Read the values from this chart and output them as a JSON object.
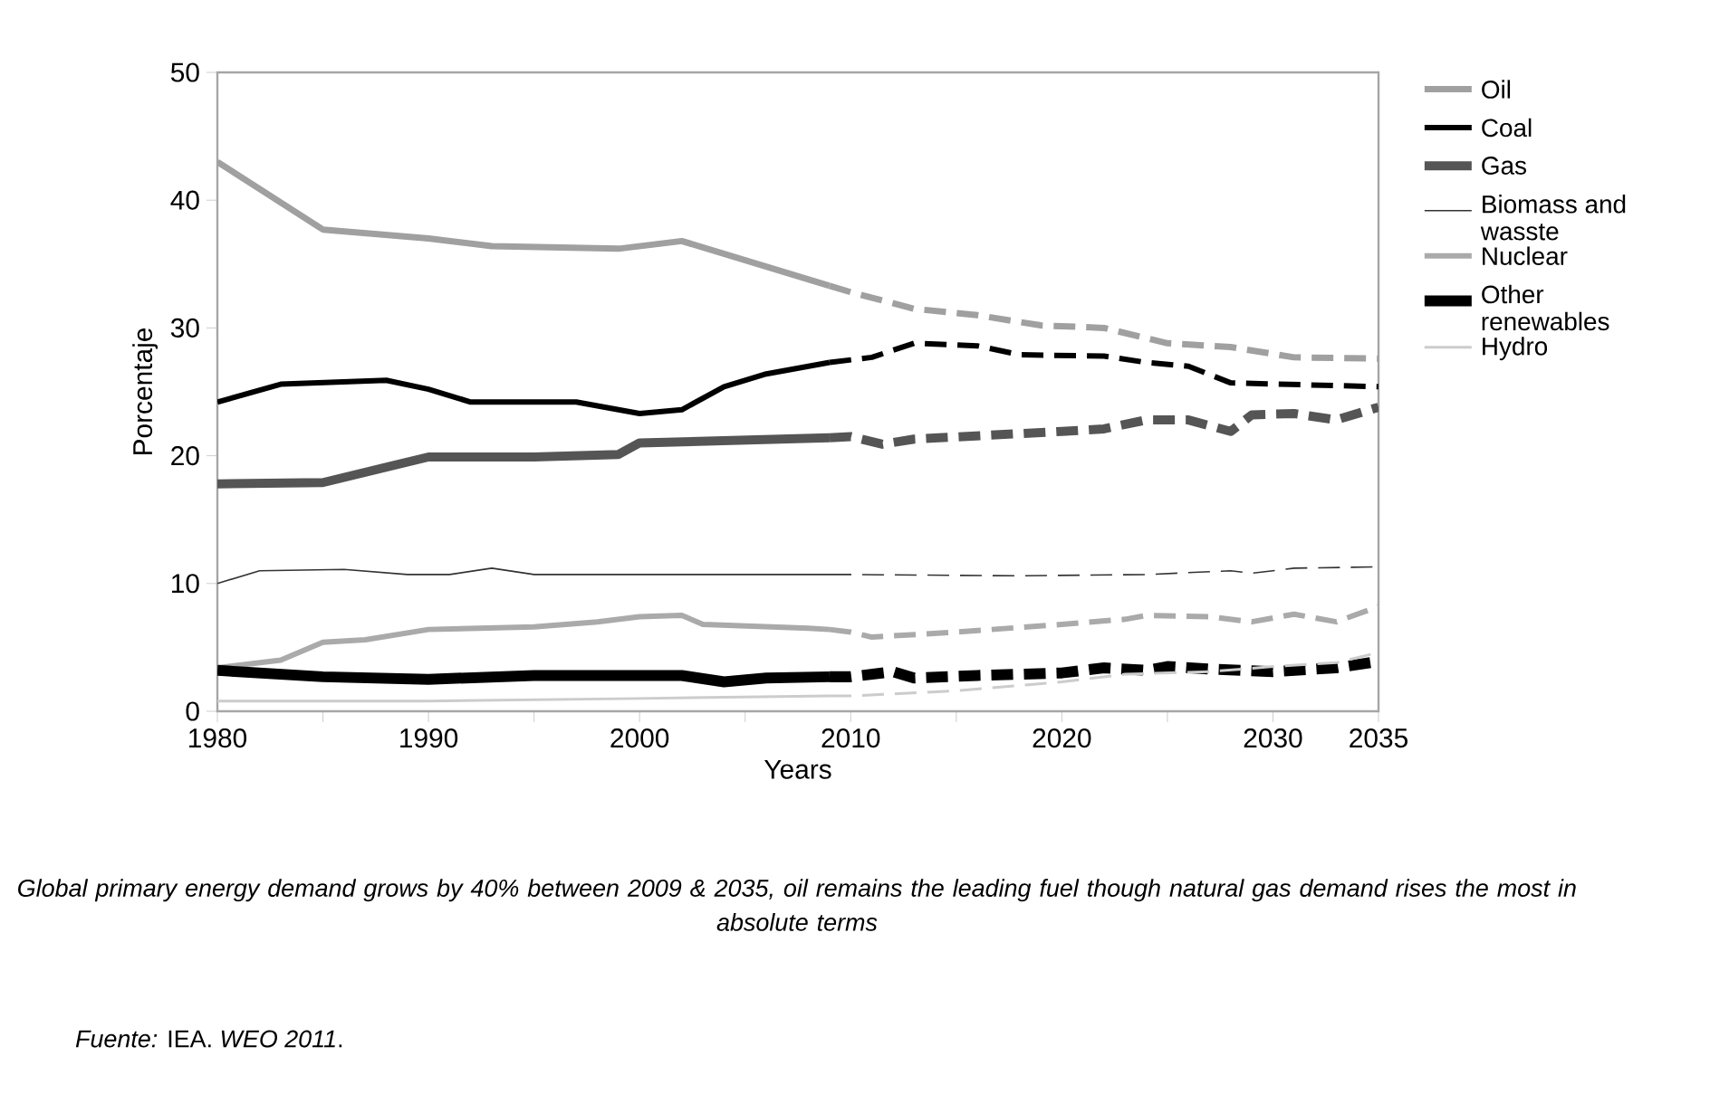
{
  "chart_data": {
    "type": "line",
    "xlabel": "Years",
    "ylabel": "Porcentaje",
    "annotations": [
      "*Global primary energy demand grows by 40% between 2009 & 2035, oil remains the leading fuel though natural gas demand rises the most in absolute terms*",
      "*Fuente:* IEA. *WEO 2011*."
    ],
    "xlim": [
      1980,
      2035
    ],
    "ylim": [
      0,
      50
    ],
    "xticks": [
      1980,
      {
        "value": 1985,
        "label": null
      },
      1990,
      {
        "value": 1995,
        "label": null
      },
      2000,
      {
        "value": 2005,
        "label": null
      },
      2010,
      {
        "value": 2015,
        "label": null
      },
      2020,
      {
        "value": 2025,
        "label": null
      },
      2030,
      2035
    ],
    "yticks": [
      0,
      10,
      20,
      30,
      40,
      50
    ],
    "grid": false,
    "legend": "right",
    "marker": "none",
    "series": [
      {
        "name": "Oil",
        "color": "#a0a0a0",
        "line_style": "solid",
        "x": [
          1980,
          1985,
          1990,
          1993,
          1999,
          2002,
          2009
        ],
        "values": [
          43,
          37.7,
          37,
          36.4,
          36.2,
          36.8,
          33.3
        ]
      },
      {
        "name": "Coal",
        "color": "#000000",
        "line_style": "solid",
        "x": [
          1980,
          1983,
          1988,
          1990,
          1992,
          1997,
          2000,
          2002,
          2004,
          2006,
          2009
        ],
        "values": [
          24.2,
          25.6,
          25.9,
          25.2,
          24.2,
          24.2,
          23.3,
          23.6,
          25.4,
          26.4,
          27.3
        ]
      },
      {
        "name": "Gas",
        "color": "#555555",
        "line_style": "solid",
        "x": [
          1980,
          1985,
          1990,
          1995,
          1999,
          2000,
          2009
        ],
        "values": [
          17.8,
          17.9,
          19.9,
          19.9,
          20.1,
          21.0,
          21.4
        ]
      },
      {
        "name": "Biomass and wasste",
        "color": "#333333",
        "line_style": "solid",
        "x": [
          1980,
          1982,
          1986,
          1989,
          1991,
          1993,
          1995,
          2009
        ],
        "values": [
          10,
          11,
          11.1,
          10.7,
          10.7,
          11.2,
          10.7,
          10.7
        ]
      },
      {
        "name": "Nuclear",
        "color": "#aaaaaa",
        "line_style": "solid",
        "x": [
          1980,
          1983,
          1985,
          1987,
          1990,
          1995,
          1998,
          2000,
          2002,
          2003,
          2008,
          2009
        ],
        "values": [
          3.4,
          4.0,
          5.4,
          5.6,
          6.4,
          6.6,
          7.0,
          7.4,
          7.5,
          6.8,
          6.5,
          6.4
        ]
      },
      {
        "name": "Other renewables",
        "color": "#000000",
        "line_style": "solid",
        "x": [
          1980,
          1985,
          1990,
          1995,
          2002,
          2004,
          2006,
          2009
        ],
        "values": [
          3.2,
          2.7,
          2.5,
          2.8,
          2.8,
          2.3,
          2.6,
          2.7
        ]
      },
      {
        "name": "Hydro",
        "color": "#cccccc",
        "line_style": "solid",
        "x": [
          1980,
          1990,
          2000,
          2009
        ],
        "values": [
          0.8,
          0.8,
          1.0,
          1.2
        ]
      },
      {
        "color": "#a0a0a0",
        "line_style": "dashed",
        "x": [
          2009,
          2010,
          2013,
          2016,
          2019,
          2022,
          2025,
          2028,
          2031,
          2035
        ],
        "values": [
          33.3,
          32.8,
          31.5,
          31,
          30.2,
          30,
          28.8,
          28.5,
          27.7,
          27.6
        ]
      },
      {
        "color": "#000000",
        "line_style": "dashed",
        "x": [
          2009,
          2011,
          2013,
          2016,
          2018,
          2022,
          2024,
          2026,
          2028,
          2035
        ],
        "values": [
          27.3,
          27.7,
          28.8,
          28.6,
          27.9,
          27.8,
          27.3,
          27.0,
          25.7,
          25.4
        ]
      },
      {
        "color": "#555555",
        "line_style": "dashed",
        "x": [
          2009,
          2010,
          2011.5,
          2013,
          2020,
          2022,
          2024,
          2026,
          2028,
          2029,
          2031,
          2033,
          2035
        ],
        "values": [
          21.4,
          21.5,
          20.9,
          21.3,
          21.9,
          22.1,
          22.8,
          22.8,
          21.9,
          23.2,
          23.3,
          22.8,
          23.8
        ]
      },
      {
        "color": "#333333",
        "line_style": "dashed",
        "x": [
          2009,
          2010,
          2018,
          2024,
          2028,
          2029,
          2031,
          2035
        ],
        "values": [
          10.7,
          10.7,
          10.6,
          10.7,
          11.0,
          10.8,
          11.2,
          11.3
        ]
      },
      {
        "color": "#aaaaaa",
        "line_style": "dashed",
        "x": [
          2009,
          2010,
          2011,
          2015,
          2020,
          2023,
          2024,
          2027,
          2029,
          2031,
          2033,
          2035
        ],
        "values": [
          6.4,
          6.2,
          5.8,
          6.2,
          6.8,
          7.2,
          7.5,
          7.4,
          7.0,
          7.6,
          7.0,
          8.2
        ]
      },
      {
        "color": "#000000",
        "line_style": "dashed",
        "x": [
          2009,
          2010,
          2012,
          2013,
          2016,
          2020,
          2022,
          2024,
          2025,
          2027,
          2030,
          2033,
          2035
        ],
        "values": [
          2.7,
          2.7,
          3.1,
          2.6,
          2.8,
          3.0,
          3.4,
          3.2,
          3.5,
          3.3,
          3.1,
          3.4,
          3.9
        ]
      },
      {
        "color": "#cccccc",
        "line_style": "dashed",
        "x": [
          2009,
          2010,
          2015,
          2020,
          2023,
          2027,
          2030,
          2033,
          2035
        ],
        "values": [
          1.2,
          1.2,
          1.6,
          2.3,
          2.9,
          3.1,
          3.5,
          3.8,
          4.6
        ]
      }
    ]
  }
}
